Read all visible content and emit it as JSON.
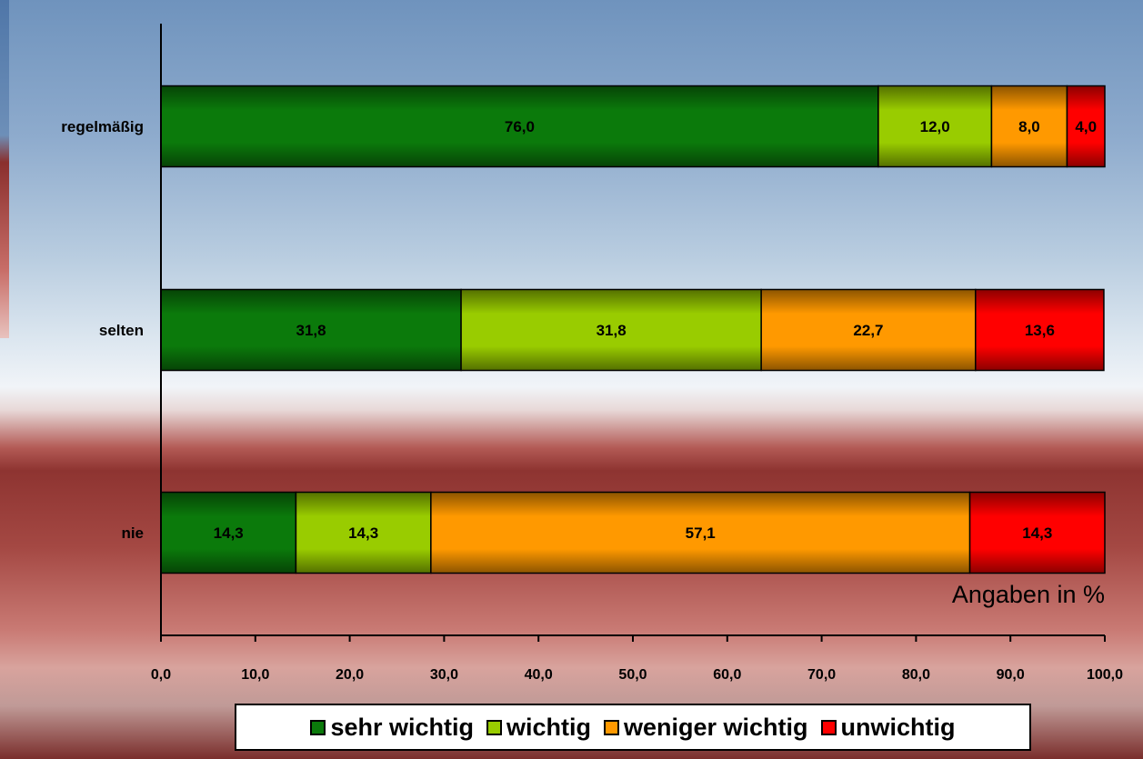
{
  "chart_data": {
    "type": "bar",
    "orientation": "horizontal",
    "stacked": true,
    "categories": [
      "regelmäßig",
      "selten",
      "nie"
    ],
    "series": [
      {
        "name": "sehr wichtig",
        "color": "#0b7a0b",
        "values": [
          76.0,
          31.8,
          14.3
        ]
      },
      {
        "name": "wichtig",
        "color": "#99cc00",
        "values": [
          12.0,
          31.8,
          14.3
        ]
      },
      {
        "name": "weniger wichtig",
        "color": "#ff9900",
        "values": [
          8.0,
          22.7,
          57.1
        ]
      },
      {
        "name": "unwichtig",
        "color": "#ff0000",
        "values": [
          4.0,
          13.6,
          14.3
        ]
      }
    ],
    "data_labels": [
      [
        "76,0",
        "31,8",
        "14,3"
      ],
      [
        "12,0",
        "31,8",
        "14,3"
      ],
      [
        "8,0",
        "22,7",
        "57,1"
      ],
      [
        "4,0",
        "13,6",
        "14,3"
      ]
    ],
    "xlim": [
      0,
      100
    ],
    "xticks": [
      0,
      10,
      20,
      30,
      40,
      50,
      60,
      70,
      80,
      90,
      100
    ],
    "xtick_labels": [
      "0,0",
      "10,0",
      "20,0",
      "30,0",
      "40,0",
      "50,0",
      "60,0",
      "70,0",
      "80,0",
      "90,0",
      "100,0"
    ],
    "annotation": "Angaben in %",
    "grid": false,
    "legend_position": "bottom"
  }
}
